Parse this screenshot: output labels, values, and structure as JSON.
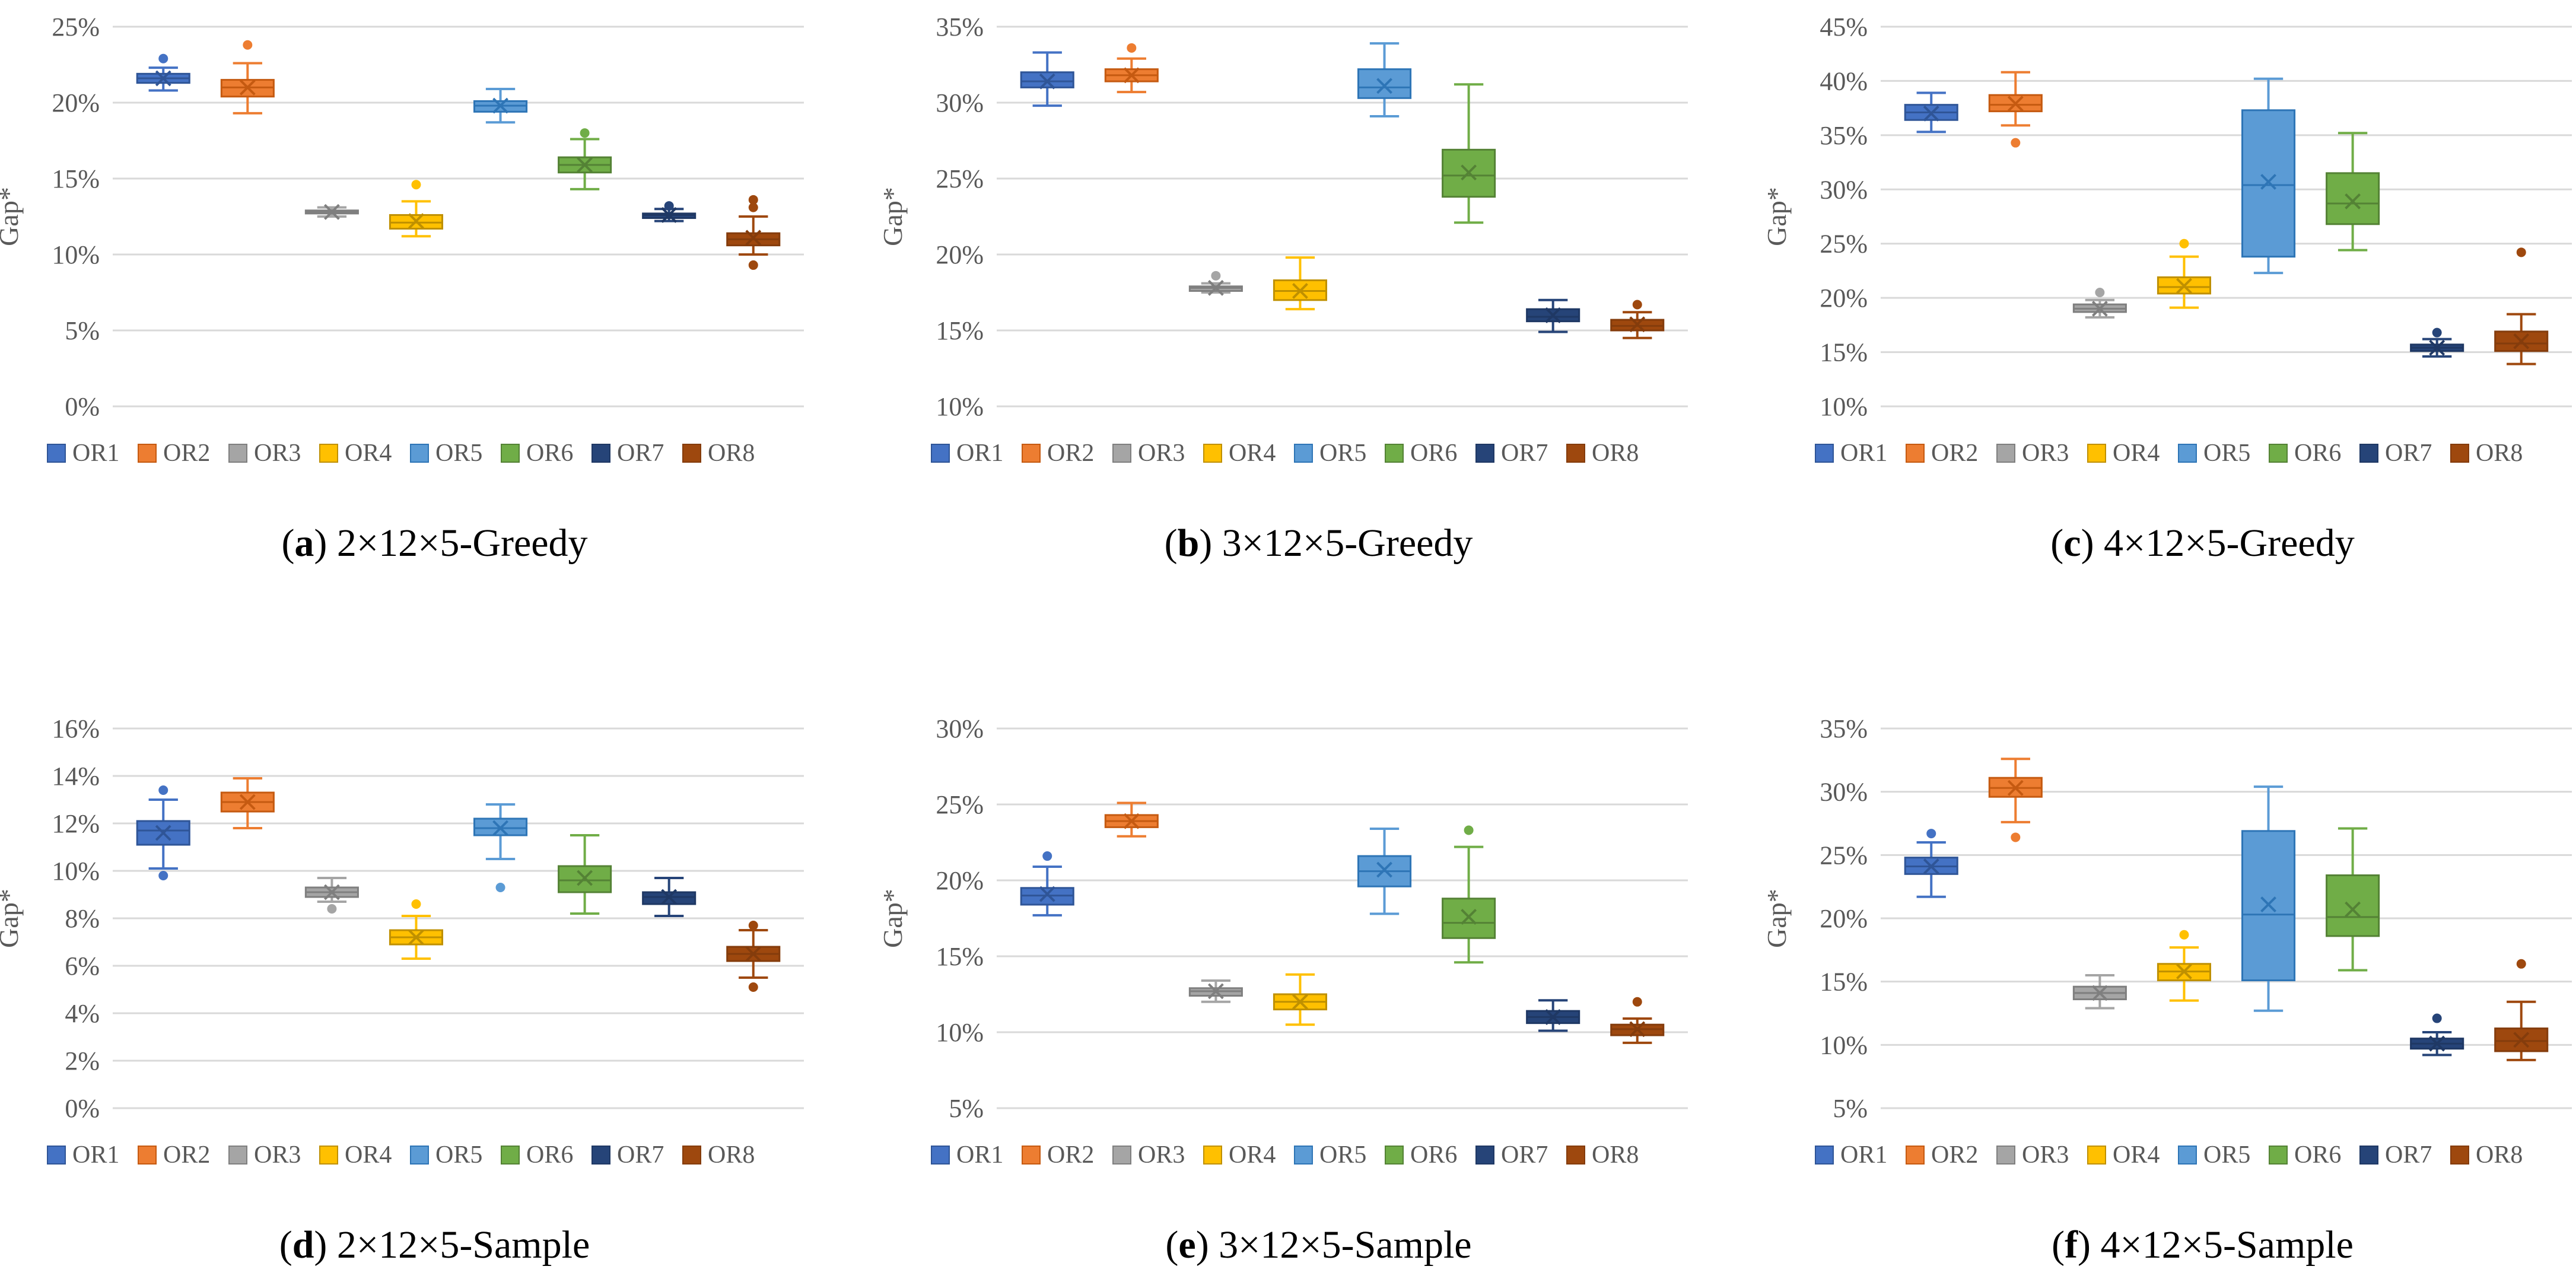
{
  "chart_data": [
    {
      "type": "box",
      "caption_letter": "a",
      "caption_text": "2×12×5-Greedy",
      "ylabel": "Gap*",
      "ylim": [
        0,
        25
      ],
      "yticks": [
        0,
        5,
        10,
        15,
        20,
        25
      ],
      "ytick_labels": [
        "0%",
        "5%",
        "10%",
        "15%",
        "20%",
        "25%"
      ],
      "categories": [
        "OR1",
        "OR2",
        "OR3",
        "OR4",
        "OR5",
        "OR6",
        "OR7",
        "OR8"
      ],
      "boxes": [
        {
          "name": "OR1",
          "min": 20.8,
          "q1": 21.3,
          "median": 21.6,
          "q3": 21.9,
          "max": 22.3,
          "mean": 21.6,
          "outliers": [
            22.9
          ]
        },
        {
          "name": "OR2",
          "min": 19.3,
          "q1": 20.4,
          "median": 21.0,
          "q3": 21.5,
          "max": 22.6,
          "mean": 21.0,
          "outliers": [
            23.8
          ]
        },
        {
          "name": "OR3",
          "min": 12.5,
          "q1": 12.7,
          "median": 12.8,
          "q3": 12.9,
          "max": 13.1,
          "mean": 12.8,
          "outliers": []
        },
        {
          "name": "OR4",
          "min": 11.2,
          "q1": 11.7,
          "median": 12.1,
          "q3": 12.6,
          "max": 13.5,
          "mean": 12.2,
          "outliers": [
            14.6
          ]
        },
        {
          "name": "OR5",
          "min": 18.7,
          "q1": 19.4,
          "median": 19.8,
          "q3": 20.1,
          "max": 20.9,
          "mean": 19.8,
          "outliers": []
        },
        {
          "name": "OR6",
          "min": 14.3,
          "q1": 15.4,
          "median": 15.9,
          "q3": 16.4,
          "max": 17.6,
          "mean": 15.9,
          "outliers": [
            18.0
          ]
        },
        {
          "name": "OR7",
          "min": 12.2,
          "q1": 12.4,
          "median": 12.6,
          "q3": 12.7,
          "max": 13.0,
          "mean": 12.6,
          "outliers": [
            13.2
          ]
        },
        {
          "name": "OR8",
          "min": 10.0,
          "q1": 10.6,
          "median": 11.0,
          "q3": 11.4,
          "max": 12.5,
          "mean": 11.1,
          "outliers": [
            9.3,
            13.1,
            13.6
          ]
        }
      ]
    },
    {
      "type": "box",
      "caption_letter": "b",
      "caption_text": "3×12×5-Greedy",
      "ylabel": "Gap*",
      "ylim": [
        10,
        35
      ],
      "yticks": [
        10,
        15,
        20,
        25,
        30,
        35
      ],
      "ytick_labels": [
        "10%",
        "15%",
        "20%",
        "25%",
        "30%",
        "35%"
      ],
      "categories": [
        "OR1",
        "OR2",
        "OR3",
        "OR4",
        "OR5",
        "OR6",
        "OR7",
        "OR8"
      ],
      "boxes": [
        {
          "name": "OR1",
          "min": 29.8,
          "q1": 31.0,
          "median": 31.4,
          "q3": 32.0,
          "max": 33.3,
          "mean": 31.4,
          "outliers": []
        },
        {
          "name": "OR2",
          "min": 30.7,
          "q1": 31.4,
          "median": 31.8,
          "q3": 32.2,
          "max": 32.9,
          "mean": 31.8,
          "outliers": [
            33.6
          ]
        },
        {
          "name": "OR3",
          "min": 17.5,
          "q1": 17.6,
          "median": 17.8,
          "q3": 17.9,
          "max": 18.1,
          "mean": 17.8,
          "outliers": [
            18.6
          ]
        },
        {
          "name": "OR4",
          "min": 16.4,
          "q1": 17.0,
          "median": 17.6,
          "q3": 18.3,
          "max": 19.8,
          "mean": 17.6,
          "outliers": []
        },
        {
          "name": "OR5",
          "min": 29.1,
          "q1": 30.3,
          "median": 31.0,
          "q3": 32.2,
          "max": 33.9,
          "mean": 31.1,
          "outliers": []
        },
        {
          "name": "OR6",
          "min": 22.1,
          "q1": 23.8,
          "median": 25.2,
          "q3": 26.9,
          "max": 31.2,
          "mean": 25.4,
          "outliers": []
        },
        {
          "name": "OR7",
          "min": 14.9,
          "q1": 15.6,
          "median": 15.9,
          "q3": 16.4,
          "max": 17.0,
          "mean": 16.0,
          "outliers": []
        },
        {
          "name": "OR8",
          "min": 14.5,
          "q1": 15.0,
          "median": 15.3,
          "q3": 15.7,
          "max": 16.2,
          "mean": 15.4,
          "outliers": [
            16.7
          ]
        }
      ]
    },
    {
      "type": "box",
      "caption_letter": "c",
      "caption_text": "4×12×5-Greedy",
      "ylabel": "Gap*",
      "ylim": [
        10,
        45
      ],
      "yticks": [
        10,
        15,
        20,
        25,
        30,
        35,
        40,
        45
      ],
      "ytick_labels": [
        "10%",
        "15%",
        "20%",
        "25%",
        "30%",
        "35%",
        "40%",
        "45%"
      ],
      "categories": [
        "OR1",
        "OR2",
        "OR3",
        "OR4",
        "OR5",
        "OR6",
        "OR7",
        "OR8"
      ],
      "boxes": [
        {
          "name": "OR1",
          "min": 35.3,
          "q1": 36.4,
          "median": 37.1,
          "q3": 37.8,
          "max": 38.9,
          "mean": 37.0,
          "outliers": []
        },
        {
          "name": "OR2",
          "min": 35.9,
          "q1": 37.2,
          "median": 37.8,
          "q3": 38.7,
          "max": 40.8,
          "mean": 37.9,
          "outliers": [
            34.3
          ]
        },
        {
          "name": "OR3",
          "min": 18.2,
          "q1": 18.7,
          "median": 19.0,
          "q3": 19.4,
          "max": 19.8,
          "mean": 19.0,
          "outliers": [
            20.5
          ]
        },
        {
          "name": "OR4",
          "min": 19.1,
          "q1": 20.4,
          "median": 21.0,
          "q3": 21.9,
          "max": 23.8,
          "mean": 21.1,
          "outliers": [
            25.0
          ]
        },
        {
          "name": "OR5",
          "min": 22.3,
          "q1": 23.8,
          "median": 30.4,
          "q3": 37.3,
          "max": 40.2,
          "mean": 30.7,
          "outliers": []
        },
        {
          "name": "OR6",
          "min": 24.4,
          "q1": 26.8,
          "median": 28.7,
          "q3": 31.5,
          "max": 35.2,
          "mean": 28.9,
          "outliers": []
        },
        {
          "name": "OR7",
          "min": 14.6,
          "q1": 15.1,
          "median": 15.4,
          "q3": 15.7,
          "max": 16.2,
          "mean": 15.4,
          "outliers": [
            16.8
          ]
        },
        {
          "name": "OR8",
          "min": 13.9,
          "q1": 15.1,
          "median": 15.8,
          "q3": 16.9,
          "max": 18.5,
          "mean": 16.0,
          "outliers": [
            24.2
          ]
        }
      ]
    },
    {
      "type": "box",
      "caption_letter": "d",
      "caption_text": "2×12×5-Sample",
      "ylabel": "Gap*",
      "ylim": [
        0,
        16
      ],
      "yticks": [
        0,
        2,
        4,
        6,
        8,
        10,
        12,
        14,
        16
      ],
      "ytick_labels": [
        "0%",
        "2%",
        "4%",
        "6%",
        "8%",
        "10%",
        "12%",
        "14%",
        "16%"
      ],
      "categories": [
        "OR1",
        "OR2",
        "OR3",
        "OR4",
        "OR5",
        "OR6",
        "OR7",
        "OR8"
      ],
      "boxes": [
        {
          "name": "OR1",
          "min": 10.1,
          "q1": 11.1,
          "median": 11.7,
          "q3": 12.1,
          "max": 13.0,
          "mean": 11.6,
          "outliers": [
            9.8,
            13.4
          ]
        },
        {
          "name": "OR2",
          "min": 11.8,
          "q1": 12.5,
          "median": 12.9,
          "q3": 13.3,
          "max": 13.9,
          "mean": 12.9,
          "outliers": []
        },
        {
          "name": "OR3",
          "min": 8.7,
          "q1": 8.9,
          "median": 9.1,
          "q3": 9.3,
          "max": 9.7,
          "mean": 9.1,
          "outliers": [
            8.4
          ]
        },
        {
          "name": "OR4",
          "min": 6.3,
          "q1": 6.9,
          "median": 7.2,
          "q3": 7.5,
          "max": 8.1,
          "mean": 7.2,
          "outliers": [
            8.6
          ]
        },
        {
          "name": "OR5",
          "min": 10.5,
          "q1": 11.5,
          "median": 11.8,
          "q3": 12.2,
          "max": 12.8,
          "mean": 11.8,
          "outliers": [
            9.3
          ]
        },
        {
          "name": "OR6",
          "min": 8.2,
          "q1": 9.1,
          "median": 9.6,
          "q3": 10.2,
          "max": 11.5,
          "mean": 9.7,
          "outliers": []
        },
        {
          "name": "OR7",
          "min": 8.1,
          "q1": 8.6,
          "median": 8.9,
          "q3": 9.1,
          "max": 9.7,
          "mean": 8.9,
          "outliers": []
        },
        {
          "name": "OR8",
          "min": 5.5,
          "q1": 6.2,
          "median": 6.5,
          "q3": 6.8,
          "max": 7.5,
          "mean": 6.5,
          "outliers": [
            5.1,
            7.7
          ]
        }
      ]
    },
    {
      "type": "box",
      "caption_letter": "e",
      "caption_text": "3×12×5-Sample",
      "ylabel": "Gap*",
      "ylim": [
        5,
        30
      ],
      "yticks": [
        5,
        10,
        15,
        20,
        25,
        30
      ],
      "ytick_labels": [
        "5%",
        "10%",
        "15%",
        "20%",
        "25%",
        "30%"
      ],
      "categories": [
        "OR1",
        "OR2",
        "OR3",
        "OR4",
        "OR5",
        "OR6",
        "OR7",
        "OR8"
      ],
      "boxes": [
        {
          "name": "OR1",
          "min": 17.7,
          "q1": 18.4,
          "median": 19.0,
          "q3": 19.5,
          "max": 20.9,
          "mean": 19.1,
          "outliers": [
            21.6
          ]
        },
        {
          "name": "OR2",
          "min": 22.9,
          "q1": 23.5,
          "median": 23.9,
          "q3": 24.3,
          "max": 25.1,
          "mean": 23.9,
          "outliers": []
        },
        {
          "name": "OR3",
          "min": 12.0,
          "q1": 12.4,
          "median": 12.7,
          "q3": 12.9,
          "max": 13.4,
          "mean": 12.7,
          "outliers": []
        },
        {
          "name": "OR4",
          "min": 10.5,
          "q1": 11.5,
          "median": 12.0,
          "q3": 12.5,
          "max": 13.8,
          "mean": 12.0,
          "outliers": []
        },
        {
          "name": "OR5",
          "min": 17.8,
          "q1": 19.6,
          "median": 20.6,
          "q3": 21.6,
          "max": 23.4,
          "mean": 20.7,
          "outliers": []
        },
        {
          "name": "OR6",
          "min": 14.6,
          "q1": 16.2,
          "median": 17.2,
          "q3": 18.8,
          "max": 22.2,
          "mean": 17.6,
          "outliers": [
            23.3
          ]
        },
        {
          "name": "OR7",
          "min": 10.1,
          "q1": 10.6,
          "median": 11.0,
          "q3": 11.4,
          "max": 12.1,
          "mean": 11.0,
          "outliers": []
        },
        {
          "name": "OR8",
          "min": 9.3,
          "q1": 9.8,
          "median": 10.2,
          "q3": 10.5,
          "max": 10.9,
          "mean": 10.2,
          "outliers": [
            12.0
          ]
        }
      ]
    },
    {
      "type": "box",
      "caption_letter": "f",
      "caption_text": "4×12×5-Sample",
      "ylabel": "Gap*",
      "ylim": [
        5,
        35
      ],
      "yticks": [
        5,
        10,
        15,
        20,
        25,
        30,
        35
      ],
      "ytick_labels": [
        "5%",
        "10%",
        "15%",
        "20%",
        "25%",
        "30%",
        "35%"
      ],
      "categories": [
        "OR1",
        "OR2",
        "OR3",
        "OR4",
        "OR5",
        "OR6",
        "OR7",
        "OR8"
      ],
      "boxes": [
        {
          "name": "OR1",
          "min": 21.7,
          "q1": 23.5,
          "median": 24.1,
          "q3": 24.8,
          "max": 26.0,
          "mean": 24.1,
          "outliers": [
            26.7
          ]
        },
        {
          "name": "OR2",
          "min": 27.6,
          "q1": 29.6,
          "median": 30.3,
          "q3": 31.1,
          "max": 32.6,
          "mean": 30.3,
          "outliers": [
            26.4
          ]
        },
        {
          "name": "OR3",
          "min": 12.9,
          "q1": 13.6,
          "median": 14.1,
          "q3": 14.6,
          "max": 15.5,
          "mean": 14.1,
          "outliers": []
        },
        {
          "name": "OR4",
          "min": 13.5,
          "q1": 15.1,
          "median": 15.8,
          "q3": 16.4,
          "max": 17.7,
          "mean": 15.8,
          "outliers": [
            18.7
          ]
        },
        {
          "name": "OR5",
          "min": 12.7,
          "q1": 15.1,
          "median": 20.3,
          "q3": 26.9,
          "max": 30.4,
          "mean": 21.1,
          "outliers": []
        },
        {
          "name": "OR6",
          "min": 15.9,
          "q1": 18.6,
          "median": 20.1,
          "q3": 23.4,
          "max": 27.1,
          "mean": 20.7,
          "outliers": []
        },
        {
          "name": "OR7",
          "min": 9.2,
          "q1": 9.7,
          "median": 10.1,
          "q3": 10.5,
          "max": 11.0,
          "mean": 10.1,
          "outliers": [
            12.1
          ]
        },
        {
          "name": "OR8",
          "min": 8.8,
          "q1": 9.5,
          "median": 10.3,
          "q3": 11.3,
          "max": 13.4,
          "mean": 10.4,
          "outliers": [
            16.4
          ]
        }
      ]
    }
  ],
  "series_colors": {
    "OR1": {
      "fill": "#4472C4",
      "edge": "#2F5597"
    },
    "OR2": {
      "fill": "#ED7D31",
      "edge": "#C55A11"
    },
    "OR3": {
      "fill": "#A5A5A5",
      "edge": "#7F7F7F"
    },
    "OR4": {
      "fill": "#FFC000",
      "edge": "#BF9000"
    },
    "OR5": {
      "fill": "#5B9BD5",
      "edge": "#2E75B6"
    },
    "OR6": {
      "fill": "#70AD47",
      "edge": "#548235"
    },
    "OR7": {
      "fill": "#264478",
      "edge": "#1F3864"
    },
    "OR8": {
      "fill": "#9E480E",
      "edge": "#843C0C"
    }
  },
  "grid": true,
  "legend_position": "bottom"
}
